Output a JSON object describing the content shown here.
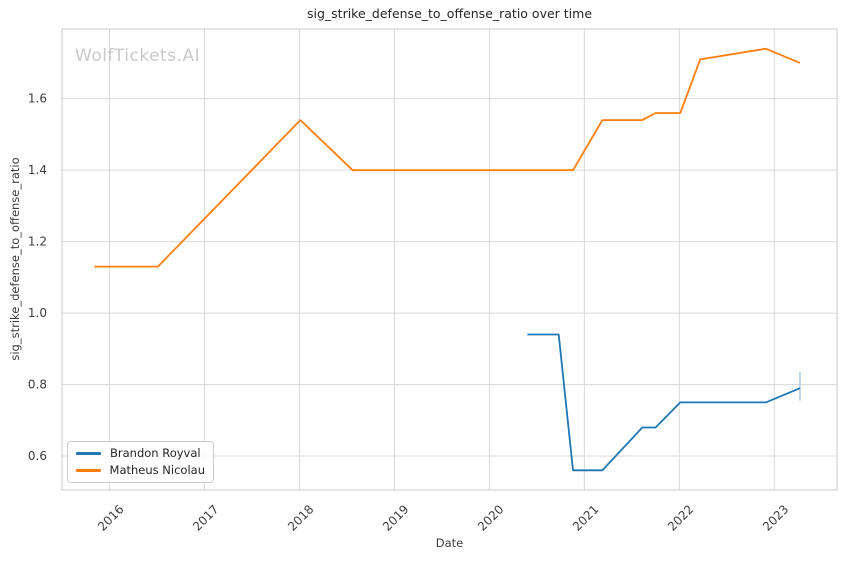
{
  "watermark": "WolfTickets.AI",
  "chart_data": {
    "type": "line",
    "title": "sig_strike_defense_to_offense_ratio over time",
    "xlabel": "Date",
    "ylabel": "sig_strike_defense_to_offense_ratio",
    "x_ticks": [
      2016,
      2017,
      2018,
      2019,
      2020,
      2021,
      2022,
      2023
    ],
    "y_ticks": [
      0.6,
      0.8,
      1.0,
      1.2,
      1.4,
      1.6
    ],
    "xlim": [
      2015.5,
      2023.66
    ],
    "ylim": [
      0.505,
      1.795
    ],
    "grid": true,
    "legend_position": "lower-left",
    "colors": {
      "grid": "#d9d9d9",
      "spine": "#cbcbcb",
      "title_text": "#262626",
      "tick_text": "#3d3d3d",
      "watermark": "#c9c9c9"
    },
    "series": [
      {
        "name": "Brandon Royval",
        "color": "#1f77b4",
        "points": [
          [
            2020.4,
            0.94
          ],
          [
            2020.73,
            0.94
          ],
          [
            2020.88,
            0.56
          ],
          [
            2021.19,
            0.56
          ],
          [
            2021.61,
            0.68
          ],
          [
            2021.75,
            0.68
          ],
          [
            2022.01,
            0.75
          ],
          [
            2022.91,
            0.75
          ],
          [
            2023.27,
            0.79
          ]
        ],
        "error_bar": {
          "x": 2023.27,
          "y_low": 0.755,
          "y_high": 0.835,
          "color": "#b1cfe5"
        }
      },
      {
        "name": "Matheus Nicolau",
        "color": "#ff7f0e",
        "points": [
          [
            2015.84,
            1.13
          ],
          [
            2016.51,
            1.13
          ],
          [
            2018.01,
            1.54
          ],
          [
            2018.56,
            1.4
          ],
          [
            2020.88,
            1.4
          ],
          [
            2021.19,
            1.54
          ],
          [
            2021.61,
            1.54
          ],
          [
            2021.75,
            1.56
          ],
          [
            2022.01,
            1.56
          ],
          [
            2022.22,
            1.71
          ],
          [
            2022.91,
            1.74
          ],
          [
            2023.27,
            1.7
          ]
        ]
      }
    ]
  }
}
